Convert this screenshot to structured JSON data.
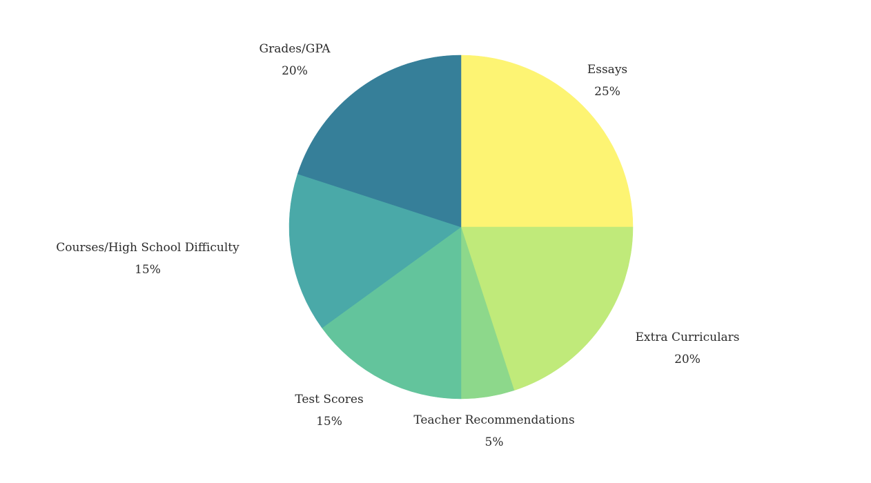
{
  "chart_data": {
    "type": "pie",
    "start": "12 o'clock",
    "direction": "clockwise",
    "slices": [
      {
        "label": "Essays",
        "value": 25,
        "value_label": "25%",
        "color": "#fdf473"
      },
      {
        "label": "Extra Curriculars",
        "value": 20,
        "value_label": "20%",
        "color": "#c0ea7a"
      },
      {
        "label": "Teacher Recommendations",
        "value": 5,
        "value_label": "5%",
        "color": "#8dd88b"
      },
      {
        "label": "Test Scores",
        "value": 15,
        "value_label": "15%",
        "color": "#63c49c"
      },
      {
        "label": "Courses/High School Difficulty",
        "value": 15,
        "value_label": "15%",
        "color": "#4aa9a8"
      },
      {
        "label": "Grades/GPA",
        "value": 20,
        "value_label": "20%",
        "color": "#367f99"
      }
    ]
  }
}
